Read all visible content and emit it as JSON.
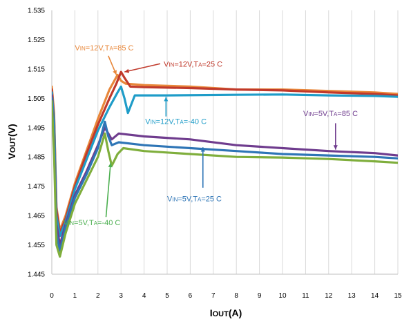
{
  "chart_data": {
    "type": "line",
    "title": "",
    "xlabel": {
      "main": "I",
      "sub": "OUT",
      "unit": "(A)"
    },
    "ylabel": {
      "main": "V",
      "sub": "OUT",
      "unit": "(V)"
    },
    "xlim": [
      0,
      15
    ],
    "ylim": [
      1.445,
      1.535
    ],
    "xticks": [
      "0",
      "1",
      "2",
      "3",
      "4",
      "5",
      "6",
      "7",
      "8",
      "9",
      "10",
      "11",
      "12",
      "13",
      "14",
      "15"
    ],
    "yticks": [
      "1.445",
      "1.455",
      "1.465",
      "1.475",
      "1.485",
      "1.495",
      "1.505",
      "1.515",
      "1.525",
      "1.535"
    ],
    "grid": {
      "vertical": true,
      "horizontal": false
    },
    "legend": "none",
    "series": [
      {
        "color": "#E8873A",
        "points": [
          [
            0.0,
            1.509
          ],
          [
            0.1,
            1.5
          ],
          [
            0.2,
            1.468
          ],
          [
            0.35,
            1.46
          ],
          [
            0.6,
            1.465
          ],
          [
            1.0,
            1.476
          ],
          [
            1.5,
            1.487
          ],
          [
            2.0,
            1.498
          ],
          [
            2.5,
            1.508
          ],
          [
            2.85,
            1.513
          ],
          [
            3.0,
            1.511
          ],
          [
            3.2,
            1.51
          ],
          [
            4,
            1.5095
          ],
          [
            6,
            1.509
          ],
          [
            8,
            1.508
          ],
          [
            10,
            1.508
          ],
          [
            12,
            1.5075
          ],
          [
            14,
            1.507
          ],
          [
            15,
            1.5065
          ]
        ]
      },
      {
        "color": "#C0392B",
        "points": [
          [
            0.0,
            1.508
          ],
          [
            0.1,
            1.499
          ],
          [
            0.2,
            1.467
          ],
          [
            0.35,
            1.459
          ],
          [
            0.6,
            1.464
          ],
          [
            1.0,
            1.475
          ],
          [
            1.5,
            1.486
          ],
          [
            2.0,
            1.496
          ],
          [
            2.5,
            1.505
          ],
          [
            2.8,
            1.51
          ],
          [
            3.0,
            1.514
          ],
          [
            3.15,
            1.512
          ],
          [
            3.4,
            1.509
          ],
          [
            4,
            1.5088
          ],
          [
            6,
            1.5085
          ],
          [
            8,
            1.508
          ],
          [
            10,
            1.5077
          ],
          [
            12,
            1.507
          ],
          [
            14,
            1.5065
          ],
          [
            15,
            1.506
          ]
        ]
      },
      {
        "color": "#1E9CC8",
        "points": [
          [
            0.0,
            1.507
          ],
          [
            0.1,
            1.497
          ],
          [
            0.2,
            1.465
          ],
          [
            0.35,
            1.458
          ],
          [
            0.6,
            1.463
          ],
          [
            1.0,
            1.474
          ],
          [
            1.5,
            1.484
          ],
          [
            2.0,
            1.494
          ],
          [
            2.5,
            1.502
          ],
          [
            2.85,
            1.507
          ],
          [
            3.0,
            1.509
          ],
          [
            3.15,
            1.505
          ],
          [
            3.3,
            1.5
          ],
          [
            3.45,
            1.503
          ],
          [
            3.6,
            1.506
          ],
          [
            5,
            1.506
          ],
          [
            8,
            1.5062
          ],
          [
            10,
            1.5063
          ],
          [
            12,
            1.506
          ],
          [
            14,
            1.5058
          ],
          [
            15,
            1.5055
          ]
        ]
      },
      {
        "color": "#6F3C8E",
        "points": [
          [
            0.0,
            1.506
          ],
          [
            0.1,
            1.49
          ],
          [
            0.2,
            1.462
          ],
          [
            0.35,
            1.455
          ],
          [
            0.6,
            1.462
          ],
          [
            1.0,
            1.472
          ],
          [
            1.5,
            1.48
          ],
          [
            2.0,
            1.489
          ],
          [
            2.3,
            1.495
          ],
          [
            2.45,
            1.493
          ],
          [
            2.6,
            1.491
          ],
          [
            2.9,
            1.493
          ],
          [
            4,
            1.492
          ],
          [
            6,
            1.491
          ],
          [
            8,
            1.489
          ],
          [
            10,
            1.488
          ],
          [
            12,
            1.487
          ],
          [
            14,
            1.4863
          ],
          [
            15,
            1.4855
          ]
        ]
      },
      {
        "color": "#2E75B6",
        "points": [
          [
            0.0,
            1.505
          ],
          [
            0.1,
            1.488
          ],
          [
            0.2,
            1.459
          ],
          [
            0.35,
            1.453
          ],
          [
            0.6,
            1.461
          ],
          [
            1.0,
            1.471
          ],
          [
            1.5,
            1.479
          ],
          [
            2.0,
            1.488
          ],
          [
            2.3,
            1.497
          ],
          [
            2.45,
            1.492
          ],
          [
            2.6,
            1.489
          ],
          [
            2.9,
            1.49
          ],
          [
            4,
            1.489
          ],
          [
            6,
            1.488
          ],
          [
            8,
            1.487
          ],
          [
            10,
            1.486
          ],
          [
            12,
            1.4855
          ],
          [
            14,
            1.485
          ],
          [
            15,
            1.4845
          ]
        ]
      },
      {
        "color": "#7FAE3C",
        "points": [
          [
            0.0,
            1.504
          ],
          [
            0.1,
            1.486
          ],
          [
            0.2,
            1.455
          ],
          [
            0.35,
            1.451
          ],
          [
            0.6,
            1.459
          ],
          [
            1.0,
            1.469
          ],
          [
            1.5,
            1.477
          ],
          [
            2.0,
            1.485
          ],
          [
            2.3,
            1.493
          ],
          [
            2.45,
            1.487
          ],
          [
            2.6,
            1.482
          ],
          [
            2.85,
            1.486
          ],
          [
            3.1,
            1.488
          ],
          [
            4,
            1.487
          ],
          [
            6,
            1.486
          ],
          [
            8,
            1.485
          ],
          [
            10,
            1.4848
          ],
          [
            12,
            1.4843
          ],
          [
            14,
            1.4835
          ],
          [
            15,
            1.483
          ]
        ]
      }
    ],
    "annotations": [
      {
        "parts": [
          "V",
          "IN",
          "=12V,T",
          "A",
          "=85  C"
        ],
        "color": "#E8873A",
        "text_x": 1.0,
        "text_y": 1.5213,
        "arrow": [
          [
            2.45,
            1.5195
          ],
          [
            2.8,
            1.513
          ]
        ]
      },
      {
        "parts": [
          "V",
          "IN",
          "=12V,T",
          "A",
          "=25  C"
        ],
        "color": "#C0392B",
        "text_x": 4.85,
        "text_y": 1.5158,
        "arrow": [
          [
            4.7,
            1.5168
          ],
          [
            3.15,
            1.514
          ]
        ]
      },
      {
        "parts": [
          "V",
          "IN",
          "=12V,T",
          "A",
          "=-40  C"
        ],
        "color": "#1E9CC8",
        "text_x": 4.05,
        "text_y": 1.4962,
        "arrow": [
          [
            4.95,
            1.4988
          ],
          [
            4.95,
            1.5055
          ]
        ]
      },
      {
        "parts": [
          "V",
          "IN",
          "=5V,T",
          "A",
          "=85  C"
        ],
        "color": "#6F3C8E",
        "text_x": 10.9,
        "text_y": 1.499,
        "arrow": [
          [
            12.3,
            1.4965
          ],
          [
            12.3,
            1.4875
          ]
        ]
      },
      {
        "parts": [
          "V",
          "IN",
          "=5V,T",
          "A",
          "=25  C"
        ],
        "color": "#2E75B6",
        "text_x": 5.0,
        "text_y": 1.4699,
        "arrow": [
          [
            6.55,
            1.4745
          ],
          [
            6.55,
            1.4883
          ]
        ]
      },
      {
        "parts": [
          "V",
          "IN",
          "=5V,T",
          "A",
          "=-40  C"
        ],
        "color": "#4CAF50",
        "text_x": 0.5,
        "text_y": 1.4617,
        "arrow": [
          [
            2.35,
            1.4645
          ],
          [
            2.55,
            1.483
          ]
        ]
      }
    ]
  }
}
